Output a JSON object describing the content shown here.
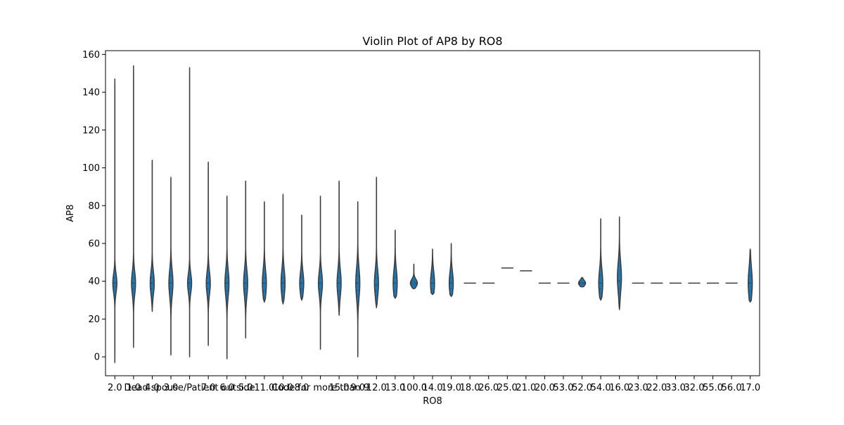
{
  "chart_data": {
    "type": "violin",
    "title": "Violin Plot of AP8 by RO8",
    "xlabel": "RO8",
    "ylabel": "AP8",
    "ylim": [
      -10,
      162
    ],
    "yticks": [
      0,
      20,
      40,
      60,
      80,
      100,
      120,
      140,
      160
    ],
    "grid": false,
    "legend": "none",
    "violin_color": "#1f77b4",
    "edge_color": "#3d3d3d",
    "categories": [
      "2.0",
      "1.0",
      "4.0",
      "3.0",
      "Dead spouse/Patient outside",
      "7.0",
      "6.0",
      "5.0",
      "11.0",
      "10.0",
      "8.0",
      "Code for more than 9",
      "15.0",
      "9.0",
      "12.0",
      "13.0",
      "100.0",
      "14.0",
      "19.0",
      "18.0",
      "26.0",
      "25.0",
      "21.0",
      "20.0",
      "53.0",
      "52.0",
      "54.0",
      "16.0",
      "23.0",
      "22.0",
      "33.0",
      "32.0",
      "55.0",
      "56.0",
      "17.0"
    ],
    "violins": [
      {
        "min": -3,
        "max": 147,
        "q1": 37,
        "median": 39,
        "q3": 42,
        "peak": 39
      },
      {
        "min": 5,
        "max": 154,
        "q1": 36,
        "median": 39,
        "q3": 42,
        "peak": 39
      },
      {
        "min": 24,
        "max": 104,
        "q1": 36,
        "median": 39,
        "q3": 42,
        "peak": 39
      },
      {
        "min": 1,
        "max": 95,
        "q1": 36,
        "median": 39,
        "q3": 43,
        "peak": 39
      },
      {
        "min": 0,
        "max": 153,
        "q1": 36,
        "median": 39,
        "q3": 41,
        "peak": 39
      },
      {
        "min": 6,
        "max": 103,
        "q1": 36,
        "median": 39,
        "q3": 42,
        "peak": 39
      },
      {
        "min": -1,
        "max": 85,
        "q1": 35,
        "median": 39,
        "q3": 42,
        "peak": 39
      },
      {
        "min": 10,
        "max": 93,
        "q1": 36,
        "median": 39,
        "q3": 43,
        "peak": 39
      },
      {
        "min": 29,
        "max": 82,
        "q1": 35,
        "median": 39,
        "q3": 42,
        "peak": 39
      },
      {
        "min": 28,
        "max": 86,
        "q1": 35,
        "median": 39,
        "q3": 42,
        "peak": 39
      },
      {
        "min": 30,
        "max": 75,
        "q1": 36,
        "median": 39,
        "q3": 42,
        "peak": 39
      },
      {
        "min": 4,
        "max": 85,
        "q1": 36,
        "median": 39,
        "q3": 42,
        "peak": 39
      },
      {
        "min": 22,
        "max": 93,
        "q1": 35,
        "median": 39,
        "q3": 42,
        "peak": 39
      },
      {
        "min": 0,
        "max": 82,
        "q1": 35,
        "median": 39,
        "q3": 43,
        "peak": 39
      },
      {
        "min": 26,
        "max": 95,
        "q1": 35,
        "median": 38,
        "q3": 42,
        "peak": 39
      },
      {
        "min": 31,
        "max": 67,
        "q1": 35,
        "median": 39,
        "q3": 42,
        "peak": 39
      },
      {
        "min": 36,
        "max": 49,
        "q1": 38,
        "median": 39,
        "q3": 40,
        "peak": 39
      },
      {
        "min": 33,
        "max": 57,
        "q1": 36,
        "median": 39,
        "q3": 42,
        "peak": 39
      },
      {
        "min": 32,
        "max": 60,
        "q1": 36,
        "median": 39,
        "q3": 42,
        "peak": 39
      },
      {
        "min": 39,
        "max": 39,
        "q1": 39,
        "median": 39,
        "q3": 39,
        "peak": 39
      },
      {
        "min": 39,
        "max": 39,
        "q1": 39,
        "median": 39,
        "q3": 39,
        "peak": 39
      },
      {
        "min": 47,
        "max": 47,
        "q1": 47,
        "median": 47,
        "q3": 47,
        "peak": 47
      },
      {
        "min": 45.5,
        "max": 45.5,
        "q1": 45.5,
        "median": 45.5,
        "q3": 45.5,
        "peak": 45.5
      },
      {
        "min": 39,
        "max": 39,
        "q1": 39,
        "median": 39,
        "q3": 39,
        "peak": 39
      },
      {
        "min": 39,
        "max": 39,
        "q1": 39,
        "median": 39,
        "q3": 39,
        "peak": 39
      },
      {
        "min": 37,
        "max": 42,
        "q1": 38.5,
        "median": 39,
        "q3": 39.5,
        "peak": 39
      },
      {
        "min": 30,
        "max": 73,
        "q1": 36,
        "median": 39,
        "q3": 43,
        "peak": 39
      },
      {
        "min": 25,
        "max": 74,
        "q1": 36,
        "median": 40,
        "q3": 48,
        "peak": 42
      },
      {
        "min": 39,
        "max": 39,
        "q1": 39,
        "median": 39,
        "q3": 39,
        "peak": 39
      },
      {
        "min": 39,
        "max": 39,
        "q1": 39,
        "median": 39,
        "q3": 39,
        "peak": 39
      },
      {
        "min": 39,
        "max": 39,
        "q1": 39,
        "median": 39,
        "q3": 39,
        "peak": 39
      },
      {
        "min": 39,
        "max": 39,
        "q1": 39,
        "median": 39,
        "q3": 39,
        "peak": 39
      },
      {
        "min": 39,
        "max": 39,
        "q1": 39,
        "median": 39,
        "q3": 39,
        "peak": 39
      },
      {
        "min": 39,
        "max": 39,
        "q1": 39,
        "median": 39,
        "q3": 39,
        "peak": 39
      },
      {
        "min": 29,
        "max": 57,
        "q1": 35,
        "median": 39,
        "q3": 43,
        "peak": 39
      }
    ]
  }
}
